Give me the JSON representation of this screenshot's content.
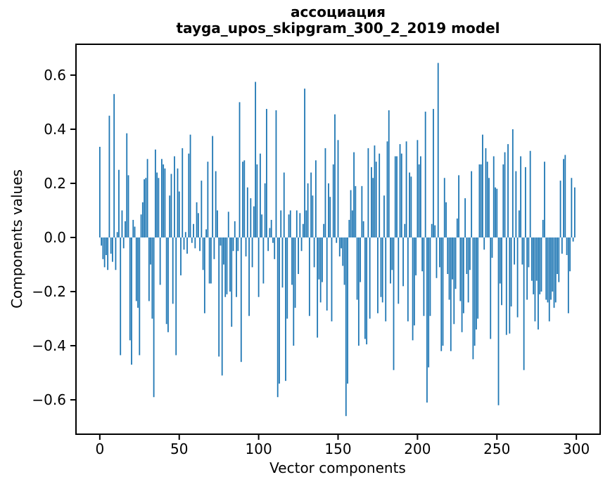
{
  "figure": {
    "background": "#ffffff"
  },
  "chart_data": {
    "type": "bar",
    "title_line1": "ассоциация",
    "title_line2": "tayga_upos_skipgram_300_2_2019 model",
    "xlabel": "Vector components",
    "ylabel": "Components values",
    "bar_color": "#1f77b4",
    "axis_color": "#000000",
    "grid": false,
    "legend_position": "none",
    "x_ticks": [
      0,
      50,
      100,
      150,
      200,
      250,
      300
    ],
    "y_ticks": [
      0.6,
      0.4,
      0.2,
      0.0,
      -0.2,
      -0.4,
      -0.6
    ],
    "xlim": [
      -15,
      315
    ],
    "ylim": [
      -0.727,
      0.714
    ],
    "x_start": 0,
    "x_step": 1,
    "values": [
      0.335,
      -0.03,
      -0.08,
      -0.11,
      -0.065,
      -0.12,
      0.45,
      -0.06,
      -0.09,
      0.53,
      -0.12,
      0.02,
      0.25,
      -0.435,
      0.1,
      -0.04,
      0.06,
      0.385,
      0.23,
      -0.38,
      -0.47,
      0.065,
      0.04,
      -0.235,
      -0.26,
      -0.435,
      0.085,
      0.13,
      0.215,
      0.22,
      0.29,
      -0.235,
      -0.1,
      -0.3,
      -0.59,
      0.325,
      0.24,
      0.22,
      -0.175,
      0.29,
      0.27,
      0.255,
      -0.32,
      -0.35,
      0.155,
      0.235,
      -0.245,
      0.3,
      -0.435,
      0.255,
      0.17,
      -0.14,
      0.33,
      -0.045,
      0.02,
      -0.06,
      0.31,
      0.38,
      -0.02,
      0.05,
      -0.04,
      0.13,
      0.09,
      -0.05,
      0.21,
      -0.12,
      -0.28,
      0.03,
      0.28,
      -0.17,
      -0.17,
      0.375,
      -0.08,
      0.245,
      0.1,
      -0.44,
      -0.03,
      -0.51,
      -0.1,
      -0.22,
      -0.21,
      0.095,
      -0.2,
      -0.33,
      -0.05,
      0.06,
      -0.22,
      -0.05,
      0.5,
      -0.46,
      0.28,
      0.285,
      -0.07,
      0.185,
      -0.29,
      0.145,
      -0.11,
      0.115,
      0.575,
      0.27,
      -0.22,
      0.31,
      0.085,
      -0.17,
      0.2,
      0.475,
      -0.05,
      0.035,
      0.065,
      -0.02,
      -0.08,
      0.47,
      -0.59,
      -0.54,
      0.1,
      -0.185,
      0.24,
      -0.53,
      -0.3,
      0.085,
      0.1,
      -0.175,
      -0.4,
      -0.26,
      0.1,
      -0.135,
      0.09,
      -0.05,
      0.05,
      0.55,
      0.1,
      0.2,
      -0.29,
      0.24,
      0.155,
      -0.11,
      0.285,
      -0.37,
      -0.155,
      -0.24,
      -0.165,
      0.05,
      0.33,
      -0.27,
      0.2,
      0.15,
      -0.31,
      0.27,
      0.455,
      -0.02,
      0.36,
      -0.07,
      -0.04,
      -0.105,
      -0.175,
      -0.66,
      -0.54,
      0.065,
      0.175,
      0.1,
      0.315,
      0.19,
      -0.23,
      -0.4,
      -0.165,
      0.19,
      0.06,
      -0.375,
      -0.395,
      0.33,
      -0.3,
      0.26,
      0.22,
      0.34,
      0.28,
      -0.28,
      0.31,
      -0.22,
      -0.24,
      0.155,
      -0.31,
      0.355,
      0.47,
      -0.17,
      -0.12,
      -0.49,
      0.3,
      0.3,
      -0.245,
      0.345,
      0.31,
      -0.18,
      0.05,
      0.355,
      -0.31,
      0.24,
      0.225,
      -0.38,
      -0.325,
      -0.14,
      0.36,
      0.27,
      0.3,
      -0.125,
      -0.29,
      0.465,
      -0.61,
      -0.48,
      -0.29,
      0.05,
      0.475,
      0.045,
      -0.15,
      0.645,
      -0.11,
      -0.42,
      -0.4,
      0.22,
      0.13,
      -0.135,
      -0.23,
      -0.42,
      -0.155,
      -0.32,
      -0.19,
      0.07,
      0.23,
      -0.235,
      -0.35,
      -0.28,
      0.145,
      -0.135,
      -0.24,
      -0.12,
      0.245,
      -0.45,
      -0.4,
      -0.34,
      -0.3,
      0.27,
      0.27,
      0.38,
      -0.045,
      0.33,
      0.28,
      0.22,
      -0.375,
      -0.075,
      0.3,
      0.185,
      0.18,
      -0.62,
      -0.17,
      -0.25,
      0.27,
      0.315,
      -0.36,
      0.345,
      -0.355,
      -0.255,
      0.4,
      -0.1,
      0.245,
      -0.295,
      0.1,
      0.3,
      -0.1,
      -0.49,
      0.26,
      -0.23,
      -0.11,
      0.32,
      -0.16,
      -0.21,
      -0.31,
      -0.16,
      -0.34,
      -0.21,
      -0.2,
      0.065,
      0.28,
      -0.23,
      -0.24,
      -0.31,
      -0.23,
      -0.2,
      -0.26,
      -0.24,
      -0.135,
      -0.165,
      0.21,
      -0.06,
      0.29,
      0.305,
      -0.065,
      -0.28,
      -0.125,
      0.22,
      -0.015,
      0.185
    ]
  }
}
